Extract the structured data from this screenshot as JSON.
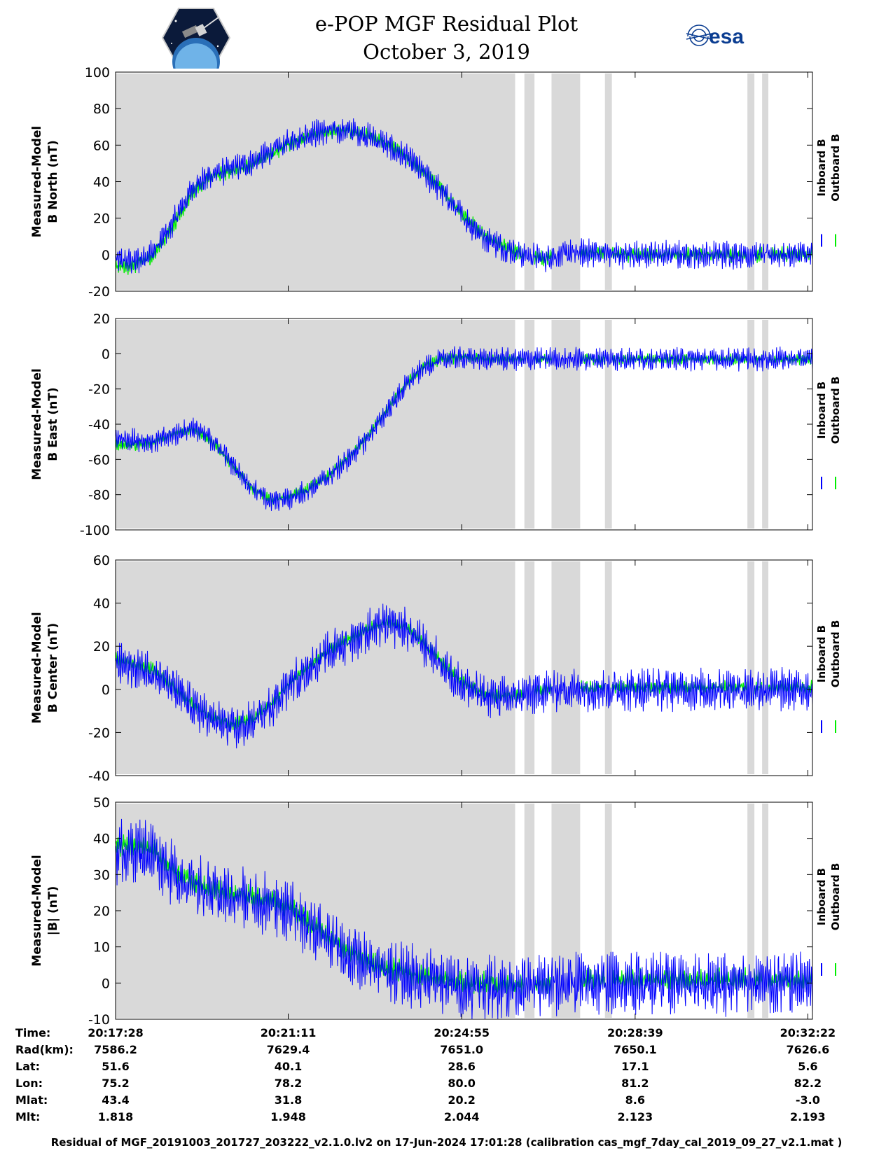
{
  "header": {
    "title": "e-POP MGF Residual Plot",
    "subtitle": "October 3, 2019"
  },
  "logos": {
    "left": "cassiope-mission-logo",
    "right_text": "esa"
  },
  "colors": {
    "inboard": "#0000ff",
    "outboard": "#00ee00",
    "gap_shading": "#d9d9d9"
  },
  "chart_data": [
    {
      "type": "line",
      "ylabel": [
        "Measured-Model",
        "B North (nT)"
      ],
      "ylim": [
        -20,
        100
      ],
      "yticks": [
        -20,
        0,
        20,
        40,
        60,
        80,
        100
      ],
      "legend": [
        "Inboard B",
        "Outboard B"
      ],
      "x_seconds": [
        0,
        25,
        50,
        75,
        100,
        125,
        150,
        175,
        200,
        225,
        250,
        275,
        300,
        325,
        350,
        375,
        400,
        425,
        450,
        475,
        500,
        525,
        550,
        575,
        600,
        625,
        650,
        675,
        700,
        725,
        750,
        775,
        800,
        825,
        850,
        875,
        900
      ],
      "series": [
        {
          "name": "Inboard B",
          "values": [
            -3,
            -4,
            2,
            18,
            37,
            44,
            47,
            50,
            56,
            62,
            66,
            68,
            68,
            65,
            60,
            53,
            44,
            33,
            20,
            10,
            4,
            0,
            -2,
            0,
            1,
            1,
            0,
            0,
            0,
            0,
            0,
            0,
            0,
            0,
            0,
            0,
            0
          ],
          "amp": 7
        },
        {
          "name": "Outboard B",
          "values": [
            -7,
            -6,
            0,
            16,
            35,
            43,
            46,
            49,
            55,
            61,
            65,
            67,
            68,
            66,
            61,
            54,
            45,
            34,
            21,
            11,
            5,
            0,
            -2,
            0,
            1,
            1,
            0,
            0,
            0,
            0,
            0,
            0,
            0,
            0,
            0,
            0,
            0
          ],
          "amp": 4
        }
      ]
    },
    {
      "type": "line",
      "ylabel": [
        "Measured-Model",
        "B East (nT)"
      ],
      "ylim": [
        -100,
        20
      ],
      "yticks": [
        -100,
        -80,
        -60,
        -40,
        -20,
        0,
        20
      ],
      "legend": [
        "Inboard B",
        "Outboard B"
      ],
      "x_seconds": [
        0,
        25,
        50,
        75,
        100,
        125,
        150,
        175,
        200,
        225,
        250,
        275,
        300,
        325,
        350,
        375,
        400,
        425,
        450,
        475,
        500,
        525,
        550,
        575,
        600,
        625,
        650,
        675,
        700,
        725,
        750,
        775,
        800,
        825,
        850,
        875,
        900
      ],
      "series": [
        {
          "name": "Inboard B",
          "values": [
            -48,
            -49,
            -50,
            -46,
            -42,
            -49,
            -62,
            -75,
            -84,
            -82,
            -77,
            -70,
            -60,
            -48,
            -33,
            -18,
            -7,
            -3,
            -2,
            -3,
            -3,
            -3,
            -3,
            -3,
            -3,
            -3,
            -3,
            -3,
            -3,
            -3,
            -3,
            -3,
            -3,
            -3,
            -3,
            -3,
            -3
          ],
          "amp": 6
        },
        {
          "name": "Outboard B",
          "values": [
            -52,
            -52,
            -50,
            -45,
            -43,
            -50,
            -63,
            -76,
            -83,
            -81,
            -76,
            -69,
            -59,
            -47,
            -32,
            -17,
            -6,
            -3,
            -2,
            -3,
            -3,
            -3,
            -3,
            -3,
            -3,
            -3,
            -3,
            -3,
            -3,
            -3,
            -3,
            -3,
            -3,
            -3,
            -3,
            -3,
            -3
          ],
          "amp": 3
        }
      ]
    },
    {
      "type": "line",
      "ylabel": [
        "Measured-Model",
        "B Center (nT)"
      ],
      "ylim": [
        -40,
        60
      ],
      "yticks": [
        -40,
        -20,
        0,
        20,
        40,
        60
      ],
      "legend": [
        "Inboard B",
        "Outboard B"
      ],
      "x_seconds": [
        0,
        25,
        50,
        75,
        100,
        125,
        150,
        175,
        200,
        225,
        250,
        275,
        300,
        325,
        350,
        375,
        400,
        425,
        450,
        475,
        500,
        525,
        550,
        575,
        600,
        625,
        650,
        675,
        700,
        725,
        750,
        775,
        800,
        825,
        850,
        875,
        900
      ],
      "series": [
        {
          "name": "Inboard B",
          "values": [
            12,
            10,
            8,
            0,
            -8,
            -14,
            -18,
            -16,
            -8,
            2,
            10,
            17,
            22,
            27,
            30,
            28,
            20,
            10,
            2,
            -3,
            -4,
            -3,
            -1,
            0,
            0,
            0,
            0,
            0,
            0,
            0,
            0,
            0,
            0,
            0,
            0,
            0,
            0
          ],
          "amp": 9
        },
        {
          "name": "Outboard B",
          "values": [
            14,
            12,
            9,
            1,
            -7,
            -13,
            -16,
            -14,
            -7,
            3,
            11,
            18,
            23,
            28,
            31,
            29,
            21,
            11,
            3,
            -2,
            -3,
            -2,
            0,
            1,
            1,
            1,
            1,
            1,
            1,
            1,
            1,
            1,
            1,
            1,
            1,
            1,
            1
          ],
          "amp": 3
        }
      ]
    },
    {
      "type": "line",
      "ylabel": [
        "Measured-Model",
        "|B| (nT)"
      ],
      "ylim": [
        -10,
        50
      ],
      "yticks": [
        -10,
        0,
        10,
        20,
        30,
        40,
        50
      ],
      "legend": [
        "Inboard B",
        "Outboard B"
      ],
      "x_seconds": [
        0,
        25,
        50,
        75,
        100,
        125,
        150,
        175,
        200,
        225,
        250,
        275,
        300,
        325,
        350,
        375,
        400,
        425,
        450,
        475,
        500,
        525,
        550,
        575,
        600,
        625,
        650,
        675,
        700,
        725,
        750,
        775,
        800,
        825,
        850,
        875,
        900
      ],
      "series": [
        {
          "name": "Inboard B",
          "values": [
            36,
            37,
            36,
            30,
            27,
            25,
            24,
            23,
            22,
            20,
            16,
            12,
            8,
            5,
            3,
            2,
            1,
            0,
            -1,
            -1,
            -1,
            -1,
            -1,
            0,
            0,
            0,
            0,
            0,
            0,
            0,
            0,
            0,
            0,
            0,
            0,
            0,
            0
          ],
          "amp": 8
        },
        {
          "name": "Outboard B",
          "values": [
            38,
            38,
            37,
            31,
            28,
            26,
            25,
            24,
            23,
            21,
            17,
            13,
            9,
            6,
            4,
            3,
            2,
            1,
            0,
            0,
            0,
            0,
            0,
            1,
            1,
            1,
            1,
            1,
            1,
            1,
            1,
            1,
            1,
            1,
            1,
            1,
            1
          ],
          "amp": 3
        }
      ]
    }
  ],
  "gaps_seconds": [
    [
      0,
      516
    ],
    [
      528,
      541
    ],
    [
      563,
      600
    ],
    [
      632,
      641
    ],
    [
      816,
      825
    ],
    [
      835,
      843
    ]
  ],
  "x_range_seconds": [
    0,
    900
  ],
  "ephemeris": {
    "labels": [
      "Time:",
      "Rad(km):",
      "Lat:",
      "Lon:",
      "Mlat:",
      "Mlt:"
    ],
    "columns": [
      {
        "time": "20:17:28",
        "rad": "7586.2",
        "lat": "51.6",
        "lon": "75.2",
        "mlat": "43.4",
        "mlt": "1.818"
      },
      {
        "time": "20:21:11",
        "rad": "7629.4",
        "lat": "40.1",
        "lon": "78.2",
        "mlat": "31.8",
        "mlt": "1.948"
      },
      {
        "time": "20:24:55",
        "rad": "7651.0",
        "lat": "28.6",
        "lon": "80.0",
        "mlat": "20.2",
        "mlt": "2.044"
      },
      {
        "time": "20:28:39",
        "rad": "7650.1",
        "lat": "17.1",
        "lon": "81.2",
        "mlat": "8.6",
        "mlt": "2.123"
      },
      {
        "time": "20:32:22",
        "rad": "7626.6",
        "lat": "5.6",
        "lon": "82.2",
        "mlat": "-3.0",
        "mlt": "2.193"
      }
    ]
  },
  "footer": "Residual of MGF_20191003_201727_203222_v2.1.0.lv2 on 17-Jun-2024 17:01:28 (calibration cas_mgf_7day_cal_2019_09_27_v2.1.mat )"
}
